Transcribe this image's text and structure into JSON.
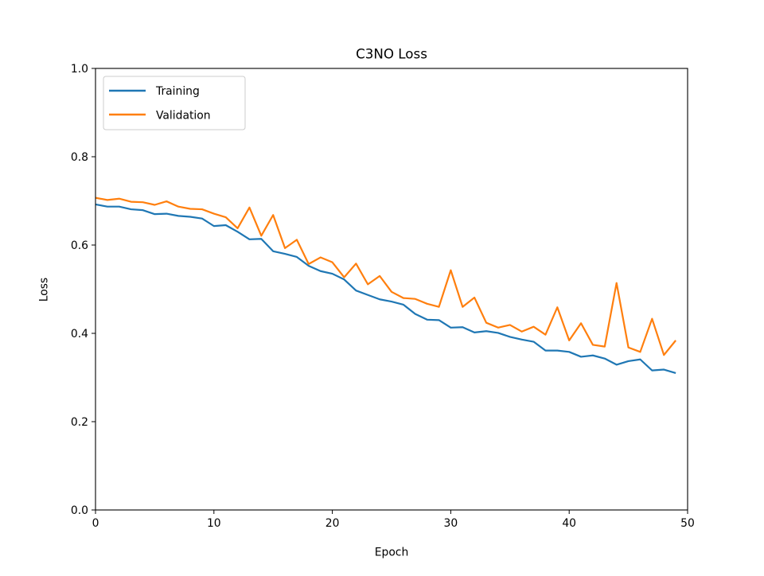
{
  "chart_data": {
    "type": "line",
    "title": "C3NO Loss",
    "xlabel": "Epoch",
    "ylabel": "Loss",
    "xlim": [
      0,
      50
    ],
    "ylim": [
      0,
      1.0
    ],
    "xticks": [
      0,
      10,
      20,
      30,
      40,
      50
    ],
    "xtick_labels": [
      "0",
      "10",
      "20",
      "30",
      "40",
      "50"
    ],
    "yticks": [
      0.0,
      0.2,
      0.4,
      0.6,
      0.8,
      1.0
    ],
    "ytick_labels": [
      "0.0",
      "0.2",
      "0.4",
      "0.6",
      "0.8",
      "1.0"
    ],
    "grid": false,
    "legend_position": "top-left",
    "x": [
      0,
      1,
      2,
      3,
      4,
      5,
      6,
      7,
      8,
      9,
      10,
      11,
      12,
      13,
      14,
      15,
      16,
      17,
      18,
      19,
      20,
      21,
      22,
      23,
      24,
      25,
      26,
      27,
      28,
      29,
      30,
      31,
      32,
      33,
      34,
      35,
      36,
      37,
      38,
      39,
      40,
      41,
      42,
      43,
      44,
      45,
      46,
      47,
      48,
      49
    ],
    "series": [
      {
        "name": "Training",
        "color": "#1f77b4",
        "values": [
          0.692,
          0.687,
          0.687,
          0.681,
          0.679,
          0.67,
          0.671,
          0.666,
          0.664,
          0.66,
          0.643,
          0.645,
          0.63,
          0.613,
          0.614,
          0.586,
          0.58,
          0.573,
          0.553,
          0.541,
          0.535,
          0.522,
          0.497,
          0.487,
          0.477,
          0.472,
          0.465,
          0.444,
          0.431,
          0.43,
          0.413,
          0.414,
          0.402,
          0.405,
          0.401,
          0.392,
          0.386,
          0.381,
          0.361,
          0.361,
          0.358,
          0.347,
          0.35,
          0.343,
          0.329,
          0.337,
          0.341,
          0.316,
          0.318,
          0.31
        ]
      },
      {
        "name": "Validation",
        "color": "#ff7f0e",
        "values": [
          0.707,
          0.702,
          0.705,
          0.698,
          0.697,
          0.691,
          0.699,
          0.687,
          0.682,
          0.681,
          0.671,
          0.663,
          0.638,
          0.685,
          0.621,
          0.668,
          0.593,
          0.612,
          0.557,
          0.572,
          0.561,
          0.527,
          0.558,
          0.511,
          0.53,
          0.494,
          0.48,
          0.478,
          0.467,
          0.46,
          0.543,
          0.46,
          0.481,
          0.424,
          0.413,
          0.419,
          0.404,
          0.415,
          0.397,
          0.459,
          0.384,
          0.423,
          0.374,
          0.37,
          0.514,
          0.368,
          0.358,
          0.433,
          0.351,
          0.384
        ]
      }
    ]
  }
}
